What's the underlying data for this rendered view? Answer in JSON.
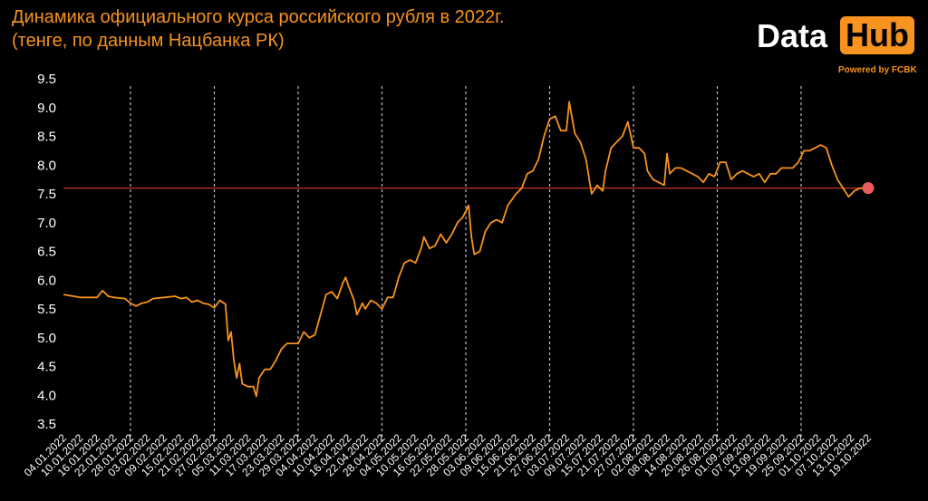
{
  "header": {
    "title": "Динамика официального курса российского рубля в 2022г.",
    "subtitle": "(тенге, по данным Нацбанка РК)"
  },
  "brand": {
    "data": "Data",
    "hub": "Hub",
    "powered": "Powered by FCBK"
  },
  "colors": {
    "line": "#f7931e",
    "accent": "#f7931e",
    "reference_line": "#c0392b",
    "last_point": "#e85c5c",
    "grid": "#bbbbbb"
  },
  "chart_data": {
    "type": "line",
    "title": "Динамика официального курса российского рубля в 2022г.",
    "subtitle": "(тенге, по данным Нацбанка РК)",
    "ylim": [
      3.5,
      9.5
    ],
    "yticks": [
      9.5,
      9.0,
      8.5,
      8.0,
      7.5,
      7.0,
      6.5,
      6.0,
      5.5,
      5.0,
      4.5,
      4.0,
      3.5
    ],
    "ytick_labels": [
      "9.5",
      "9.0",
      "8.5",
      "8.0",
      "7.5",
      "7.0",
      "6.5",
      "6.0",
      "5.5",
      "5.0",
      "4.5",
      "4.0",
      "3.5"
    ],
    "xtick_labels": [
      "04.01.2022",
      "10.01.2022",
      "16.01.2022",
      "22.01.2022",
      "28.01.2022",
      "03.02.2022",
      "09.02.2022",
      "15.02.2022",
      "21.02.2022",
      "27.02.2022",
      "05.03.2022",
      "11.03.2022",
      "17.03.2022",
      "23.03.2022",
      "29.03.2022",
      "04.04.2022",
      "10.04.2022",
      "16.04.2022",
      "22.04.2022",
      "28.04.2022",
      "04.05.2022",
      "10.05.2022",
      "16.05.2022",
      "22.05.2022",
      "28.05.2022",
      "03.06.2022",
      "09.06.2022",
      "15.06.2022",
      "21.06.2022",
      "27.06.2022",
      "03.07.2022",
      "09.07.2022",
      "15.07.2022",
      "21.07.2022",
      "27.07.2022",
      "02.08.2022",
      "08.08.2022",
      "14.08.2022",
      "20.08.2022",
      "26.08.2022",
      "01.09.2022",
      "07.09.2022",
      "13.09.2022",
      "19.09.2022",
      "25.09.2022",
      "01.10.2022",
      "07.10.2022",
      "13.10.2022",
      "19.10.2022"
    ],
    "xlim": [
      "04.01.2022",
      "19.10.2022"
    ],
    "vertical_gridlines": [
      "28.01.2022",
      "27.02.2022",
      "29.03.2022",
      "28.04.2022",
      "28.05.2022",
      "27.06.2022",
      "27.07.2022",
      "26.08.2022",
      "25.09.2022"
    ],
    "reference_line_y": 7.6,
    "series": [
      {
        "points": [
          [
            "04.01.2022",
            5.75
          ],
          [
            "10.01.2022",
            5.7
          ],
          [
            "16.01.2022",
            5.7
          ],
          [
            "18.01.2022",
            5.82
          ],
          [
            "20.01.2022",
            5.72
          ],
          [
            "22.01.2022",
            5.7
          ],
          [
            "26.01.2022",
            5.68
          ],
          [
            "28.01.2022",
            5.6
          ],
          [
            "30.01.2022",
            5.55
          ],
          [
            "01.02.2022",
            5.6
          ],
          [
            "03.02.2022",
            5.62
          ],
          [
            "05.02.2022",
            5.68
          ],
          [
            "09.02.2022",
            5.7
          ],
          [
            "13.02.2022",
            5.72
          ],
          [
            "15.02.2022",
            5.68
          ],
          [
            "17.02.2022",
            5.7
          ],
          [
            "19.02.2022",
            5.62
          ],
          [
            "21.02.2022",
            5.65
          ],
          [
            "23.02.2022",
            5.6
          ],
          [
            "25.02.2022",
            5.58
          ],
          [
            "27.02.2022",
            5.52
          ],
          [
            "01.03.2022",
            5.65
          ],
          [
            "03.03.2022",
            5.58
          ],
          [
            "04.03.2022",
            4.95
          ],
          [
            "05.03.2022",
            5.1
          ],
          [
            "06.03.2022",
            4.6
          ],
          [
            "07.03.2022",
            4.3
          ],
          [
            "08.03.2022",
            4.55
          ],
          [
            "09.03.2022",
            4.2
          ],
          [
            "11.03.2022",
            4.15
          ],
          [
            "13.03.2022",
            4.15
          ],
          [
            "14.03.2022",
            3.98
          ],
          [
            "15.03.2022",
            4.3
          ],
          [
            "17.03.2022",
            4.45
          ],
          [
            "19.03.2022",
            4.45
          ],
          [
            "21.03.2022",
            4.6
          ],
          [
            "23.03.2022",
            4.8
          ],
          [
            "25.03.2022",
            4.9
          ],
          [
            "27.03.2022",
            4.9
          ],
          [
            "29.03.2022",
            4.9
          ],
          [
            "31.03.2022",
            5.1
          ],
          [
            "02.04.2022",
            5.0
          ],
          [
            "04.04.2022",
            5.05
          ],
          [
            "06.04.2022",
            5.4
          ],
          [
            "08.04.2022",
            5.75
          ],
          [
            "10.04.2022",
            5.8
          ],
          [
            "12.04.2022",
            5.68
          ],
          [
            "14.04.2022",
            5.95
          ],
          [
            "15.04.2022",
            6.05
          ],
          [
            "16.04.2022",
            5.9
          ],
          [
            "18.04.2022",
            5.65
          ],
          [
            "19.04.2022",
            5.4
          ],
          [
            "21.04.2022",
            5.6
          ],
          [
            "22.04.2022",
            5.5
          ],
          [
            "24.04.2022",
            5.65
          ],
          [
            "26.04.2022",
            5.6
          ],
          [
            "28.04.2022",
            5.5
          ],
          [
            "30.04.2022",
            5.7
          ],
          [
            "02.05.2022",
            5.7
          ],
          [
            "04.05.2022",
            6.05
          ],
          [
            "06.05.2022",
            6.3
          ],
          [
            "08.05.2022",
            6.35
          ],
          [
            "10.05.2022",
            6.3
          ],
          [
            "12.05.2022",
            6.55
          ],
          [
            "13.05.2022",
            6.75
          ],
          [
            "15.05.2022",
            6.55
          ],
          [
            "17.05.2022",
            6.6
          ],
          [
            "19.05.2022",
            6.8
          ],
          [
            "21.05.2022",
            6.65
          ],
          [
            "23.05.2022",
            6.8
          ],
          [
            "25.05.2022",
            7.0
          ],
          [
            "27.05.2022",
            7.1
          ],
          [
            "29.05.2022",
            7.3
          ],
          [
            "30.05.2022",
            6.75
          ],
          [
            "31.05.2022",
            6.45
          ],
          [
            "02.06.2022",
            6.5
          ],
          [
            "04.06.2022",
            6.85
          ],
          [
            "06.06.2022",
            7.0
          ],
          [
            "08.06.2022",
            7.05
          ],
          [
            "10.06.2022",
            7.0
          ],
          [
            "12.06.2022",
            7.3
          ],
          [
            "15.06.2022",
            7.5
          ],
          [
            "17.06.2022",
            7.6
          ],
          [
            "19.06.2022",
            7.85
          ],
          [
            "21.06.2022",
            7.9
          ],
          [
            "23.06.2022",
            8.1
          ],
          [
            "25.06.2022",
            8.5
          ],
          [
            "27.06.2022",
            8.8
          ],
          [
            "29.06.2022",
            8.85
          ],
          [
            "01.07.2022",
            8.6
          ],
          [
            "03.07.2022",
            8.6
          ],
          [
            "04.07.2022",
            9.1
          ],
          [
            "06.07.2022",
            8.55
          ],
          [
            "08.07.2022",
            8.4
          ],
          [
            "10.07.2022",
            8.1
          ],
          [
            "12.07.2022",
            7.5
          ],
          [
            "14.07.2022",
            7.65
          ],
          [
            "16.07.2022",
            7.55
          ],
          [
            "17.07.2022",
            7.9
          ],
          [
            "19.07.2022",
            8.3
          ],
          [
            "21.07.2022",
            8.4
          ],
          [
            "23.07.2022",
            8.5
          ],
          [
            "25.07.2022",
            8.75
          ],
          [
            "27.07.2022",
            8.3
          ],
          [
            "29.07.2022",
            8.3
          ],
          [
            "31.07.2022",
            8.2
          ],
          [
            "01.08.2022",
            7.9
          ],
          [
            "03.08.2022",
            7.75
          ],
          [
            "05.08.2022",
            7.7
          ],
          [
            "07.08.2022",
            7.65
          ],
          [
            "08.08.2022",
            8.2
          ],
          [
            "09.08.2022",
            7.85
          ],
          [
            "11.08.2022",
            7.95
          ],
          [
            "13.08.2022",
            7.95
          ],
          [
            "15.08.2022",
            7.9
          ],
          [
            "17.08.2022",
            7.85
          ],
          [
            "19.08.2022",
            7.8
          ],
          [
            "21.08.2022",
            7.7
          ],
          [
            "23.08.2022",
            7.85
          ],
          [
            "25.08.2022",
            7.8
          ],
          [
            "27.08.2022",
            8.05
          ],
          [
            "29.08.2022",
            8.05
          ],
          [
            "31.08.2022",
            7.75
          ],
          [
            "02.09.2022",
            7.85
          ],
          [
            "04.09.2022",
            7.9
          ],
          [
            "06.09.2022",
            7.85
          ],
          [
            "08.09.2022",
            7.8
          ],
          [
            "10.09.2022",
            7.85
          ],
          [
            "12.09.2022",
            7.7
          ],
          [
            "14.09.2022",
            7.85
          ],
          [
            "16.09.2022",
            7.85
          ],
          [
            "18.09.2022",
            7.95
          ],
          [
            "20.09.2022",
            7.95
          ],
          [
            "22.09.2022",
            7.95
          ],
          [
            "24.09.2022",
            8.05
          ],
          [
            "26.09.2022",
            8.25
          ],
          [
            "28.09.2022",
            8.25
          ],
          [
            "30.09.2022",
            8.3
          ],
          [
            "02.10.2022",
            8.35
          ],
          [
            "04.10.2022",
            8.3
          ],
          [
            "06.10.2022",
            8.0
          ],
          [
            "08.10.2022",
            7.75
          ],
          [
            "10.10.2022",
            7.6
          ],
          [
            "12.10.2022",
            7.45
          ],
          [
            "14.10.2022",
            7.55
          ],
          [
            "16.10.2022",
            7.6
          ],
          [
            "19.10.2022",
            7.6
          ]
        ]
      }
    ]
  }
}
